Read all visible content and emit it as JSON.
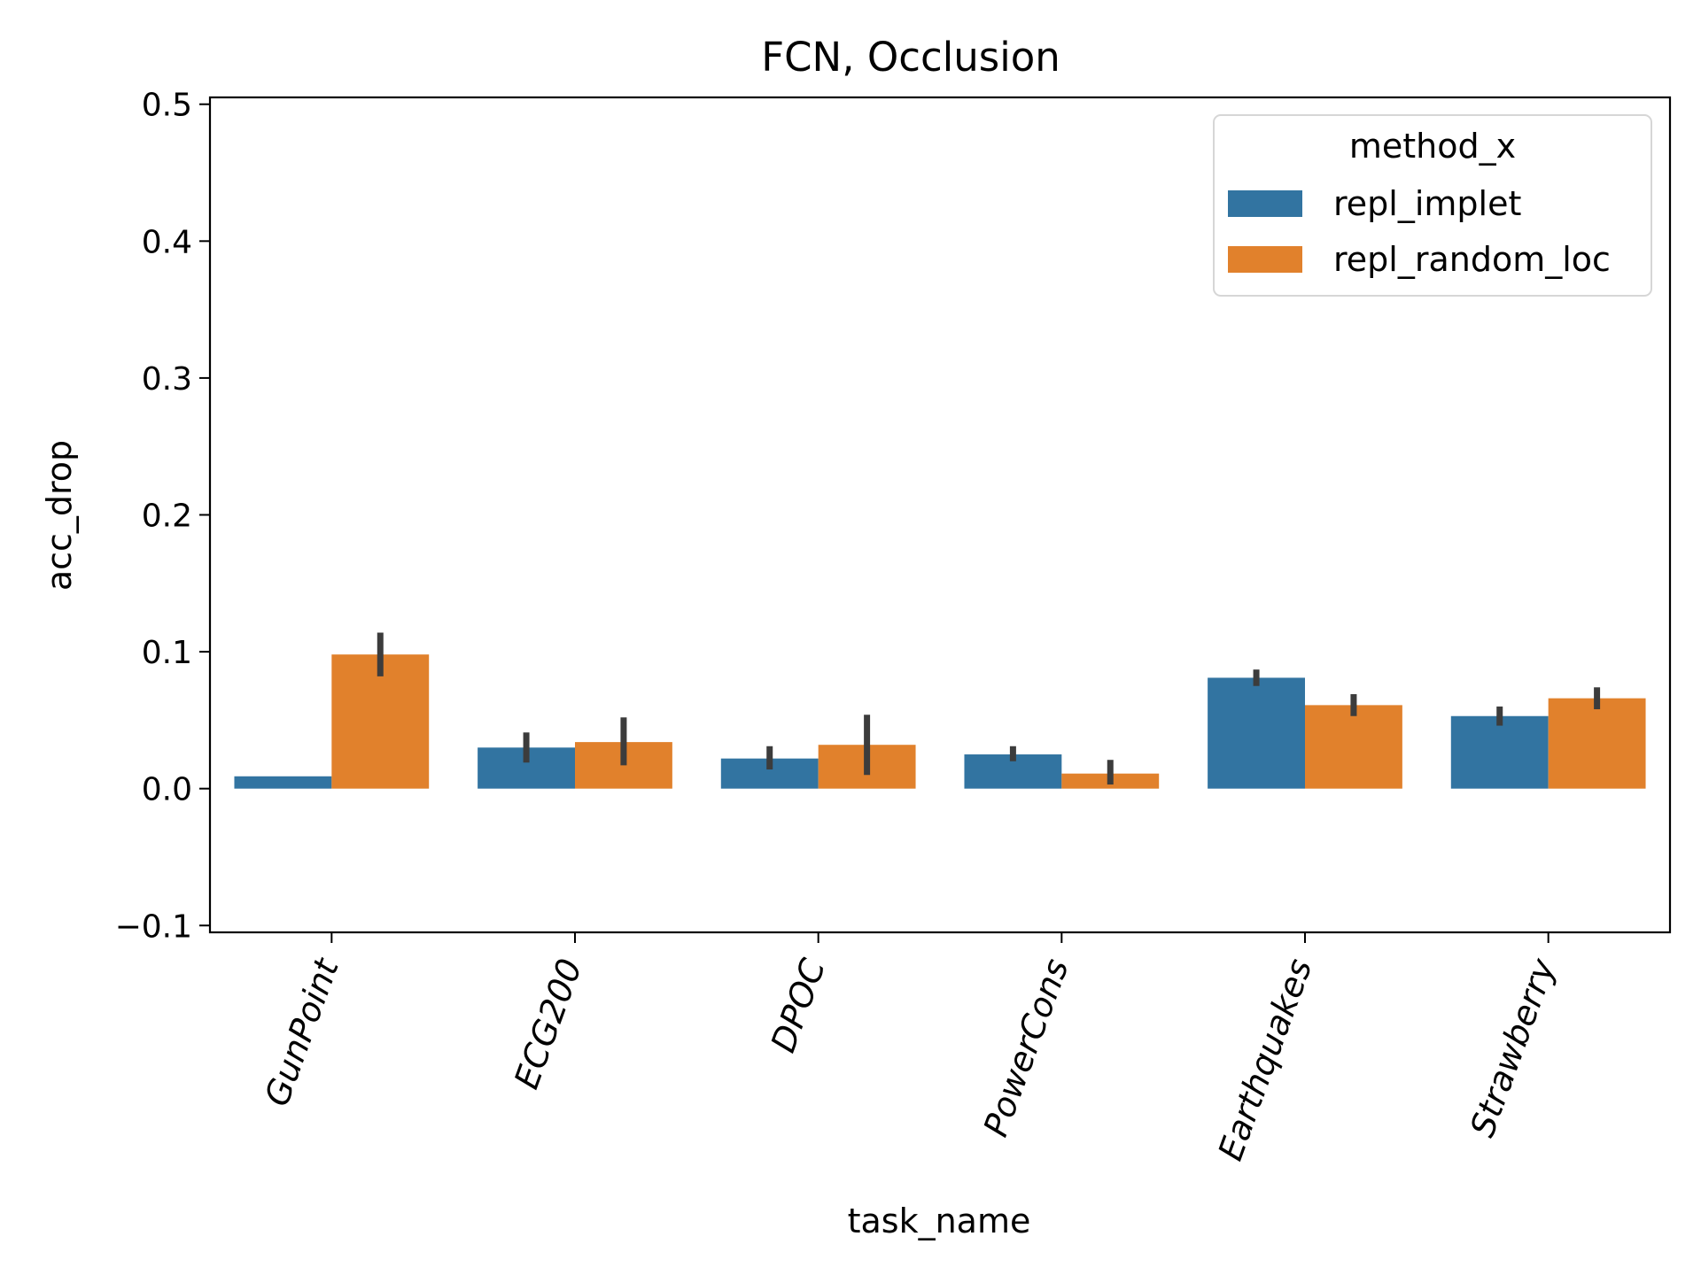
{
  "chart_data": {
    "type": "bar",
    "title": "FCN, Occlusion",
    "xlabel": "task_name",
    "ylabel": "acc_drop",
    "ylim": [
      -0.105,
      0.505
    ],
    "yticks": [
      -0.1,
      0.0,
      0.1,
      0.2,
      0.3,
      0.4,
      0.5
    ],
    "ytick_labels": [
      "−0.1",
      "0.0",
      "0.1",
      "0.2",
      "0.3",
      "0.4",
      "0.5"
    ],
    "categories": [
      "GunPoint",
      "ECG200",
      "DPOC",
      "PowerCons",
      "Earthquakes",
      "Strawberry"
    ],
    "category_label_rotation_deg": -70,
    "grid": false,
    "legend": {
      "title": "method_x",
      "placement": "upper-right"
    },
    "series": [
      {
        "name": "repl_implet",
        "color": "#3274a1",
        "values": [
          0.009,
          0.03,
          0.022,
          0.025,
          0.081,
          0.053
        ],
        "error_low": [
          0.009,
          0.019,
          0.014,
          0.02,
          0.075,
          0.046
        ],
        "error_high": [
          0.009,
          0.041,
          0.031,
          0.031,
          0.087,
          0.06
        ]
      },
      {
        "name": "repl_random_loc",
        "color": "#e1812c",
        "values": [
          0.098,
          0.034,
          0.032,
          0.011,
          0.061,
          0.066
        ],
        "error_low": [
          0.082,
          0.017,
          0.01,
          0.003,
          0.053,
          0.058
        ],
        "error_high": [
          0.114,
          0.052,
          0.054,
          0.021,
          0.069,
          0.074
        ]
      }
    ],
    "error_bar_color": "#3c3c3c"
  }
}
